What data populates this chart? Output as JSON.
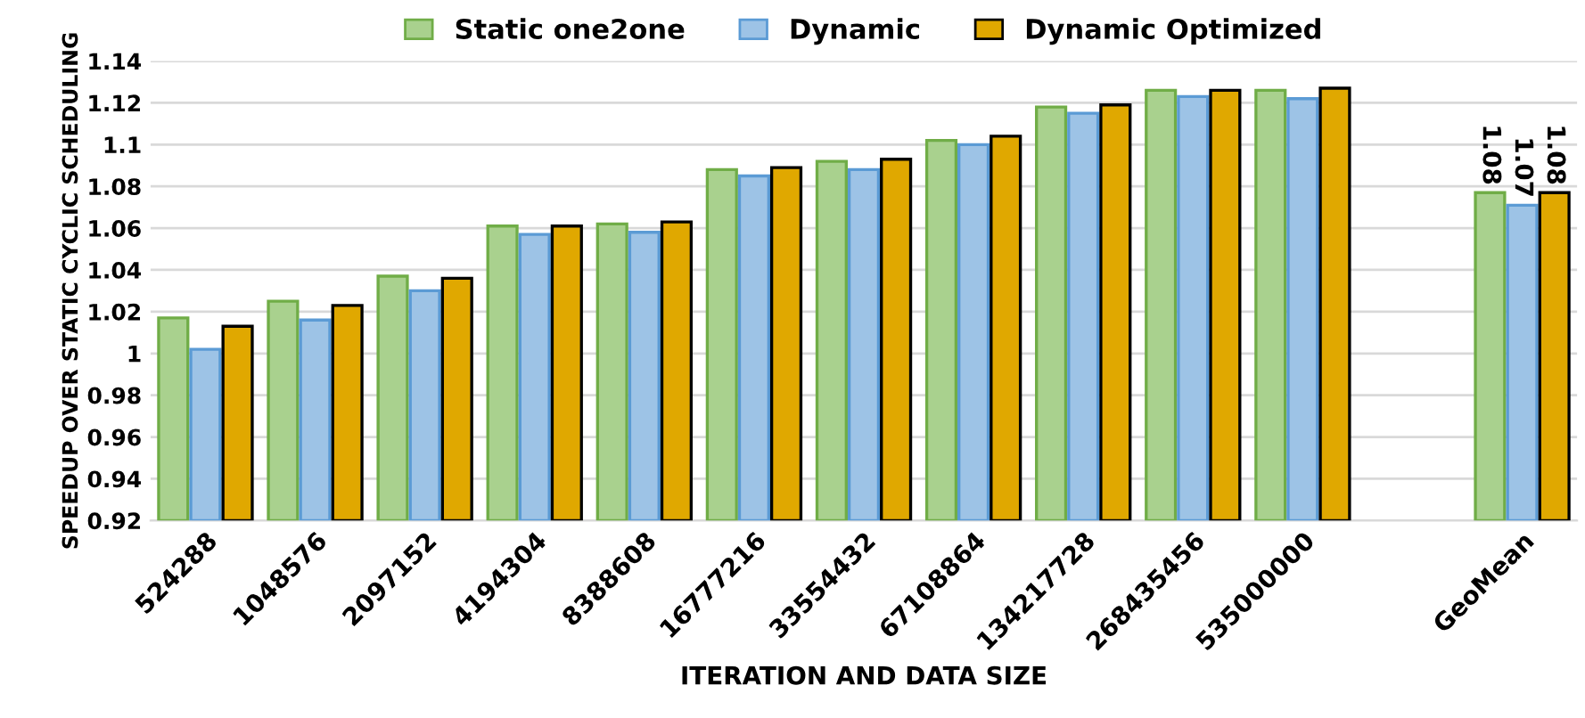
{
  "chart_data": {
    "type": "bar",
    "xlabel": "ITERATION AND DATA SIZE",
    "ylabel": "SPEEDUP OVER STATIC CYCLIC SCHEDULING",
    "categories": [
      "524288",
      "1048576",
      "2097152",
      "4194304",
      "8388608",
      "16777216",
      "33554432",
      "67108864",
      "134217728",
      "268435456",
      "535000000",
      null,
      "GeoMean"
    ],
    "series": [
      {
        "name": "Static one2one",
        "color": "#a9d18e",
        "values": [
          1.017,
          1.025,
          1.037,
          1.061,
          1.062,
          1.088,
          1.092,
          1.102,
          1.118,
          1.126,
          1.126,
          null,
          1.077
        ],
        "value_labels": [
          null,
          null,
          null,
          null,
          null,
          null,
          null,
          null,
          null,
          null,
          null,
          null,
          "1.08"
        ]
      },
      {
        "name": "Dynamic",
        "color": "#9dc3e6",
        "values": [
          1.002,
          1.016,
          1.03,
          1.057,
          1.058,
          1.085,
          1.088,
          1.1,
          1.115,
          1.123,
          1.122,
          null,
          1.071
        ],
        "value_labels": [
          null,
          null,
          null,
          null,
          null,
          null,
          null,
          null,
          null,
          null,
          null,
          null,
          "1.07"
        ]
      },
      {
        "name": "Dynamic Optimized",
        "color": "#e0a800",
        "values": [
          1.013,
          1.023,
          1.036,
          1.061,
          1.063,
          1.089,
          1.093,
          1.104,
          1.119,
          1.126,
          1.127,
          null,
          1.077
        ],
        "value_labels": [
          null,
          null,
          null,
          null,
          null,
          null,
          null,
          null,
          null,
          null,
          null,
          null,
          "1.08"
        ]
      }
    ],
    "ylim": [
      0.92,
      1.14
    ],
    "yticks": [
      0.92,
      0.94,
      0.96,
      0.98,
      1,
      1.02,
      1.04,
      1.06,
      1.08,
      1.1,
      1.12,
      1.14
    ],
    "grid": "y",
    "legend": "top"
  }
}
